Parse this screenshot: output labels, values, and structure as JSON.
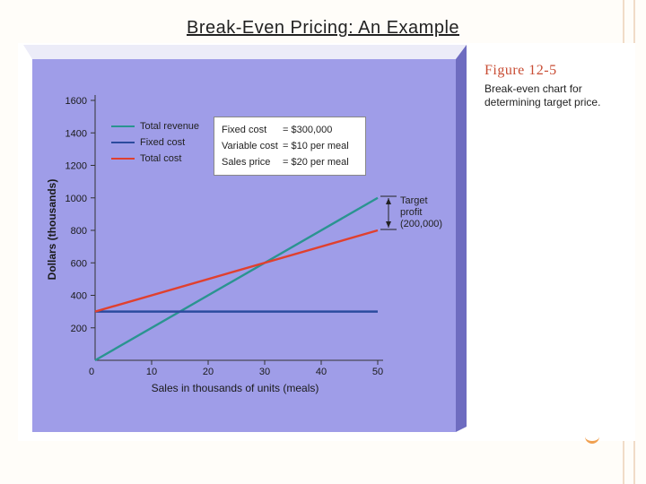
{
  "slide": {
    "title": "Break-Even Pricing: An Example"
  },
  "figure": {
    "label": "Figure 12-5",
    "caption": "Break-even chart for determining target price."
  },
  "assumptions": [
    {
      "name": "Fixed cost",
      "value": "= $300,000"
    },
    {
      "name": "Variable cost",
      "value": "= $10 per meal"
    },
    {
      "name": "Sales price",
      "value": "= $20 per meal"
    }
  ],
  "target_note": {
    "line1": "Target",
    "line2": "profit",
    "line3": "(200,000)"
  },
  "colors": {
    "plot_bg": "#9f9de8",
    "frame_dark": "#7b79c8",
    "total_revenue": "#2a9490",
    "fixed_cost": "#2b4b9e",
    "total_cost": "#e0402e"
  },
  "chart_data": {
    "type": "line",
    "title": "",
    "xlabel": "Sales in thousands of units (meals)",
    "ylabel": "Dollars (thousands)",
    "xlim": [
      0,
      50
    ],
    "ylim": [
      0,
      1600
    ],
    "xticks": [
      0,
      10,
      20,
      30,
      40,
      50
    ],
    "yticks": [
      200,
      400,
      600,
      800,
      1000,
      1200,
      1400,
      1600
    ],
    "x": [
      0,
      50
    ],
    "series": [
      {
        "name": "Total revenue",
        "values": [
          0,
          1000
        ],
        "color": "#2a9490"
      },
      {
        "name": "Fixed cost",
        "values": [
          300,
          300
        ],
        "color": "#2b4b9e"
      },
      {
        "name": "Total cost",
        "values": [
          300,
          800
        ],
        "color": "#e0402e"
      }
    ],
    "grid": false,
    "legend": "top-left"
  }
}
